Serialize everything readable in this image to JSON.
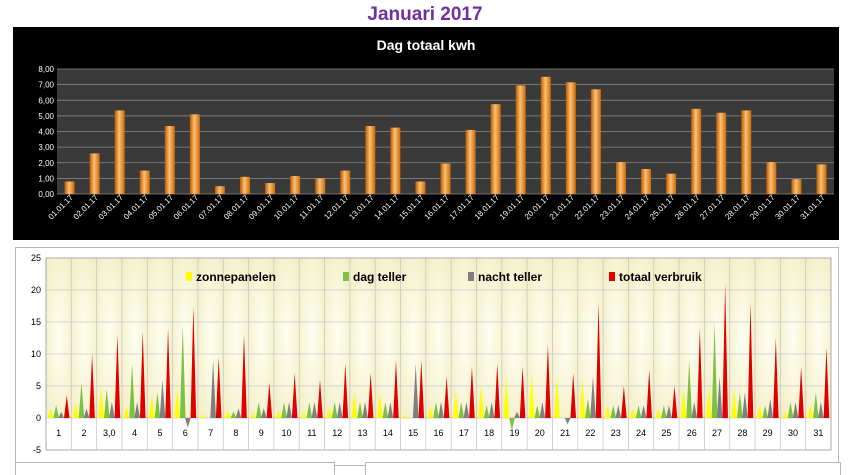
{
  "page": {
    "title": "Januari 2017"
  },
  "colors": {
    "title": "#7030a0",
    "chart1_background": "#000000",
    "chart1_plot_background": "#3a3a3a",
    "bar_orange": "#f28c1e",
    "zonnepanelen": "#ffff00",
    "dag_teller": "#7cc242",
    "nacht_teller": "#7f7f7f",
    "totaal_verbruik": "#e00000"
  },
  "chart_data": [
    {
      "type": "bar",
      "title": "Dag totaal kwh",
      "xlabel": "",
      "ylabel": "",
      "ylim": [
        0,
        8
      ],
      "yticks": [
        "0,00",
        "1,00",
        "2,00",
        "3,00",
        "4,00",
        "5,00",
        "6,00",
        "7,00",
        "8,00"
      ],
      "grid": true,
      "categories": [
        "01.01.17",
        "02.01.17",
        "03.01.17",
        "04.01.17",
        "05.01.17",
        "06.01.17",
        "07.01.17",
        "08.01.17",
        "09.01.17",
        "10.01.17",
        "11.01.17",
        "12.01.17",
        "13.01.17",
        "14.01.17",
        "15.01.17",
        "16.01.17",
        "17.01.17",
        "18.01.17",
        "19.01.17",
        "20.01.17",
        "21.01.17",
        "22.01.17",
        "23.01.17",
        "24.01.17",
        "25.01.17",
        "26.01.17",
        "27.01.17",
        "28.01.17",
        "29.01.17",
        "30.01.17",
        "31.01.17"
      ],
      "values": [
        0.8,
        2.6,
        5.35,
        1.5,
        4.35,
        5.1,
        0.5,
        1.1,
        0.7,
        1.15,
        1.0,
        1.5,
        4.35,
        4.25,
        0.8,
        1.95,
        4.1,
        5.75,
        6.95,
        7.5,
        7.15,
        6.7,
        2.05,
        1.6,
        1.3,
        5.45,
        5.2,
        5.35,
        2.05,
        0.95,
        1.9
      ]
    },
    {
      "type": "bar",
      "title": "",
      "xlabel": "",
      "ylabel": "",
      "ylim": [
        -5,
        25
      ],
      "yticks": [
        "-5",
        "0",
        "5",
        "10",
        "15",
        "20",
        "25"
      ],
      "grid": true,
      "legend_position": "top",
      "categories": [
        "1",
        "2",
        "3,0",
        "4",
        "5",
        "6",
        "7",
        "8",
        "9",
        "10",
        "11",
        "12",
        "13",
        "14",
        "15",
        "16",
        "17",
        "18",
        "19",
        "20",
        "21",
        "22",
        "23",
        "24",
        "25",
        "26",
        "27",
        "28",
        "29",
        "30",
        "31"
      ],
      "series": [
        {
          "name": "zonnepanelen",
          "values": [
            1.5,
            2.5,
            4.8,
            1.8,
            3.5,
            4.5,
            0.5,
            1.2,
            0.8,
            1.2,
            1.0,
            1.8,
            4.0,
            4.0,
            0.5,
            1.8,
            4.2,
            5.2,
            6.5,
            7.0,
            6.5,
            6.0,
            2.0,
            1.5,
            1.3,
            4.5,
            4.8,
            4.5,
            2.0,
            1.0,
            2.0
          ]
        },
        {
          "name": "dag teller",
          "values": [
            2.0,
            5.5,
            4.5,
            8.5,
            4.0,
            14.5,
            0.0,
            1.0,
            2.5,
            2.5,
            2.5,
            2.5,
            2.5,
            2.5,
            0.0,
            2.5,
            2.5,
            2.0,
            -2.0,
            2.0,
            0.0,
            3.0,
            2.0,
            2.0,
            2.0,
            9.0,
            15.0,
            4.0,
            2.0,
            2.5,
            4.0
          ]
        },
        {
          "name": "nacht teller",
          "values": [
            1.0,
            1.5,
            2.5,
            2.5,
            6.0,
            -1.5,
            9.0,
            1.5,
            1.5,
            2.5,
            2.5,
            2.5,
            2.5,
            2.5,
            8.5,
            2.5,
            2.5,
            2.5,
            1.0,
            2.5,
            -1.0,
            6.5,
            2.0,
            2.0,
            2.0,
            2.5,
            6.5,
            4.0,
            3.0,
            2.5,
            2.5
          ]
        },
        {
          "name": "totaal verbruik",
          "values": [
            3.5,
            10.0,
            13.0,
            13.5,
            14.0,
            17.5,
            9.5,
            13.0,
            5.5,
            7.0,
            6.0,
            8.5,
            7.0,
            9.0,
            9.0,
            6.5,
            8.0,
            8.5,
            8.0,
            11.5,
            7.0,
            18.0,
            5.0,
            7.5,
            5.0,
            14.0,
            21.0,
            18.0,
            12.5,
            8.0,
            11.0
          ]
        }
      ]
    }
  ]
}
